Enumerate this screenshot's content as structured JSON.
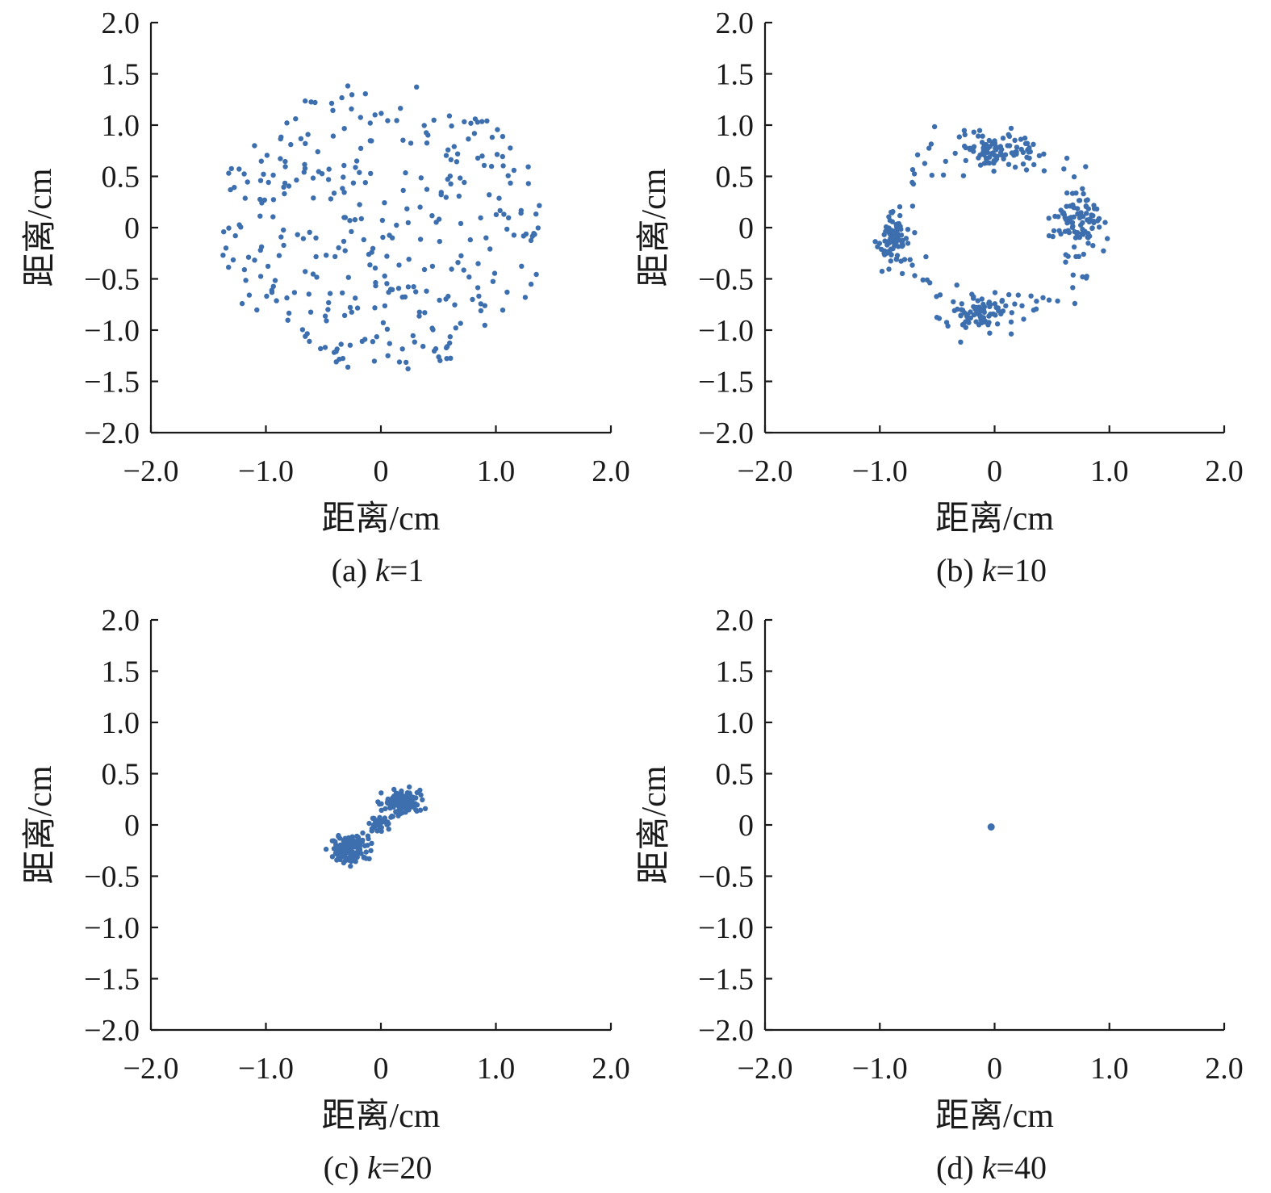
{
  "figure": {
    "series_color": "#3D6FAF"
  },
  "chart_data": [
    {
      "type": "scatter",
      "caption": {
        "prefix": "(a) ",
        "k": "k",
        "suffix": "=1"
      },
      "xlabel": "距离/cm",
      "ylabel": "距离/cm",
      "xlim": [
        -2.0,
        2.0
      ],
      "ylim": [
        -2.0,
        2.0
      ],
      "xticks": [
        -2.0,
        -1.0,
        0,
        1.0,
        2.0
      ],
      "xtick_labels": [
        "−2.0",
        "−1.0",
        "0",
        "1.0",
        "2.0"
      ],
      "yticks": [
        2.0,
        1.5,
        1.0,
        0.5,
        0,
        -0.5,
        -1.0,
        -1.5,
        -2.0
      ],
      "ytick_labels": [
        "2.0",
        "1.5",
        "1.0",
        "0.5",
        "0",
        "−0.5",
        "−1.0",
        "−1.5",
        "−2.0"
      ],
      "grid": false,
      "point_layout": {
        "shape": "uniform-disk",
        "center": [
          0.0,
          0.0
        ],
        "radius": 1.43,
        "count": 340
      }
    },
    {
      "type": "scatter",
      "caption": {
        "prefix": "(b) ",
        "k": "k",
        "suffix": "=10"
      },
      "xlabel": "距离/cm",
      "ylabel": "距离/cm",
      "xlim": [
        -2.0,
        2.0
      ],
      "ylim": [
        -2.0,
        2.0
      ],
      "xticks": [
        -2.0,
        -1.0,
        0,
        1.0,
        2.0
      ],
      "xtick_labels": [
        "−2.0",
        "−1.0",
        "0",
        "1.0",
        "2.0"
      ],
      "yticks": [
        2.0,
        1.5,
        1.0,
        0.5,
        0,
        -0.5,
        -1.0,
        -1.5,
        -2.0
      ],
      "ytick_labels": [
        "2.0",
        "1.5",
        "1.0",
        "0.5",
        "0",
        "−0.5",
        "−1.0",
        "−1.5",
        "−2.0"
      ],
      "grid": false,
      "point_layout": {
        "shape": "ring-clusters",
        "clusters": [
          {
            "center": [
              -0.05,
              0.72
            ],
            "spread": [
              0.17,
              0.1
            ],
            "count": 75
          },
          {
            "center": [
              0.72,
              0.08
            ],
            "spread": [
              0.1,
              0.13
            ],
            "count": 75
          },
          {
            "center": [
              -0.12,
              -0.83
            ],
            "spread": [
              0.14,
              0.09
            ],
            "count": 75
          },
          {
            "center": [
              -0.88,
              -0.1
            ],
            "spread": [
              0.07,
              0.13
            ],
            "count": 75
          }
        ],
        "ring": {
          "center": [
            0.0,
            0.0
          ],
          "radius": 0.82,
          "count": 100
        }
      }
    },
    {
      "type": "scatter",
      "caption": {
        "prefix": "(c) ",
        "k": "k",
        "suffix": "=20"
      },
      "xlabel": "距离/cm",
      "ylabel": "距离/cm",
      "xlim": [
        -2.0,
        2.0
      ],
      "ylim": [
        -2.0,
        2.0
      ],
      "xticks": [
        -2.0,
        -1.0,
        0,
        1.0,
        2.0
      ],
      "xtick_labels": [
        "−2.0",
        "−1.0",
        "0",
        "1.0",
        "2.0"
      ],
      "yticks": [
        2.0,
        1.5,
        1.0,
        0.5,
        0,
        -0.5,
        -1.0,
        -1.5,
        -2.0
      ],
      "ytick_labels": [
        "2.0",
        "1.5",
        "1.0",
        "0.5",
        "0",
        "−0.5",
        "−1.0",
        "−1.5",
        "−2.0"
      ],
      "grid": false,
      "point_layout": {
        "shape": "diagonal-clusters",
        "clusters": [
          {
            "center": [
              -0.28,
              -0.24
            ],
            "spread": [
              0.08,
              0.07
            ],
            "count": 110
          },
          {
            "center": [
              0.18,
              0.22
            ],
            "spread": [
              0.09,
              0.06
            ],
            "count": 110
          },
          {
            "center": [
              -0.02,
              0.02
            ],
            "spread": [
              0.04,
              0.03
            ],
            "count": 30
          }
        ],
        "segment": {
          "from": [
            -0.4,
            -0.36
          ],
          "to": [
            0.36,
            0.32
          ],
          "count": 50
        }
      }
    },
    {
      "type": "scatter",
      "caption": {
        "prefix": "(d) ",
        "k": "k",
        "suffix": "=40"
      },
      "xlabel": "距离/cm",
      "ylabel": "距离/cm",
      "xlim": [
        -2.0,
        2.0
      ],
      "ylim": [
        -2.0,
        2.0
      ],
      "xticks": [
        -2.0,
        -1.0,
        0,
        1.0,
        2.0
      ],
      "xtick_labels": [
        "−2.0",
        "−1.0",
        "0",
        "1.0",
        "2.0"
      ],
      "yticks": [
        2.0,
        1.5,
        1.0,
        0.5,
        0,
        -0.5,
        -1.0,
        -1.5,
        -2.0
      ],
      "ytick_labels": [
        "2.0",
        "1.5",
        "1.0",
        "0.5",
        "0",
        "−0.5",
        "−1.0",
        "−1.5",
        "−2.0"
      ],
      "grid": false,
      "points": [
        [
          -0.03,
          -0.02
        ]
      ]
    }
  ]
}
